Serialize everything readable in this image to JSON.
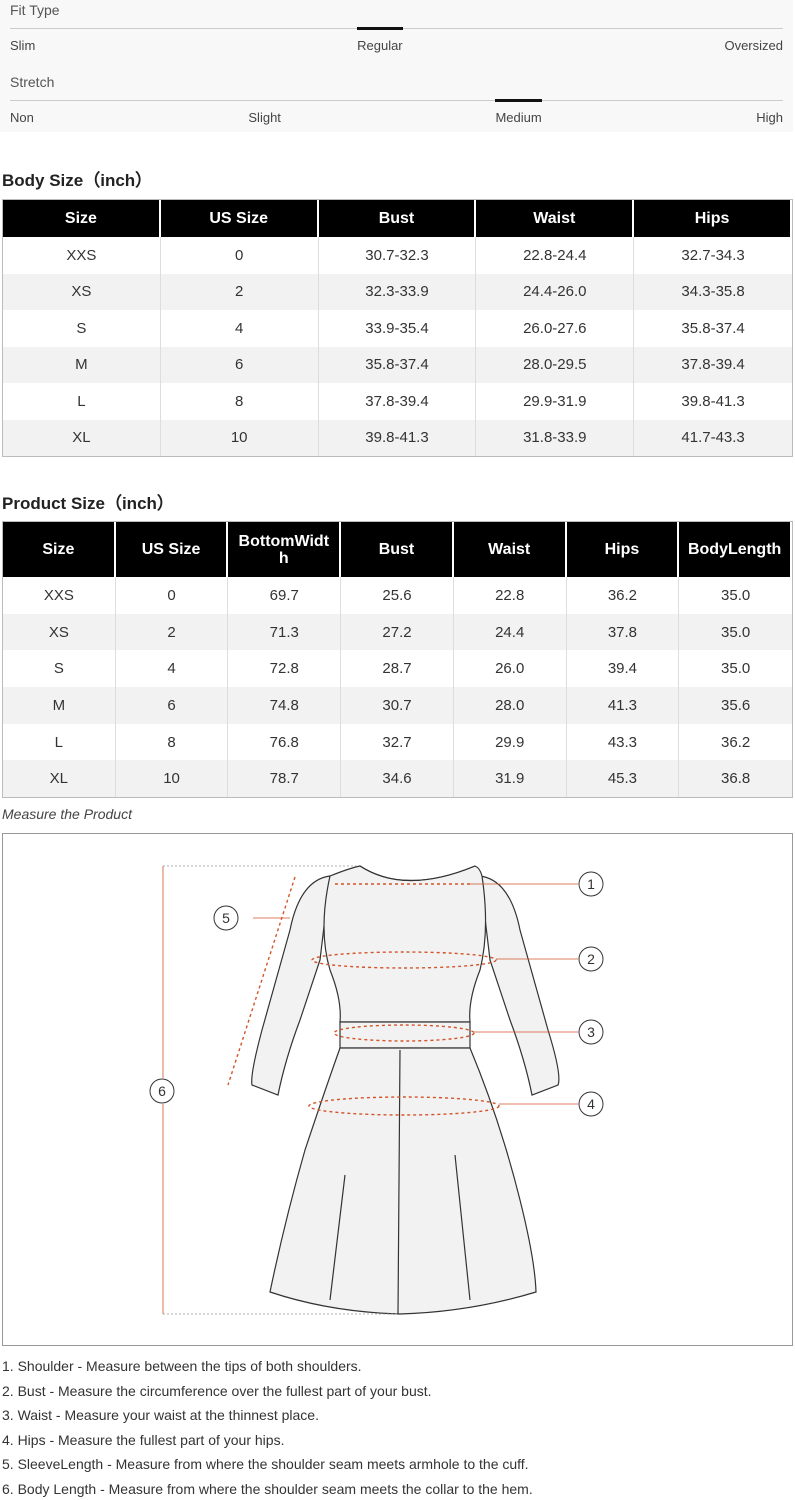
{
  "fit_scales": [
    {
      "title": "Fit Type",
      "options": [
        "Slim",
        "Regular",
        "Oversized"
      ]
    },
    {
      "title": "Stretch",
      "options": [
        "Non",
        "Slight",
        "Medium",
        "High"
      ]
    }
  ],
  "body_size": {
    "title": "Body Size（inch）",
    "header": [
      "Size",
      "US Size",
      "Bust",
      "Waist",
      "Hips"
    ],
    "rows": [
      [
        "XXS",
        "0",
        "30.7-32.3",
        "22.8-24.4",
        "32.7-34.3"
      ],
      [
        "XS",
        "2",
        "32.3-33.9",
        "24.4-26.0",
        "34.3-35.8"
      ],
      [
        "S",
        "4",
        "33.9-35.4",
        "26.0-27.6",
        "35.8-37.4"
      ],
      [
        "M",
        "6",
        "35.8-37.4",
        "28.0-29.5",
        "37.8-39.4"
      ],
      [
        "L",
        "8",
        "37.8-39.4",
        "29.9-31.9",
        "39.8-41.3"
      ],
      [
        "XL",
        "10",
        "39.8-41.3",
        "31.8-33.9",
        "41.7-43.3"
      ]
    ]
  },
  "product_size": {
    "title": "Product Size（inch）",
    "header": [
      "Size",
      "US Size",
      "BottomWidth",
      "Bust",
      "Waist",
      "Hips",
      "BodyLength"
    ],
    "rows": [
      [
        "XXS",
        "0",
        "69.7",
        "25.6",
        "22.8",
        "36.2",
        "35.0"
      ],
      [
        "XS",
        "2",
        "71.3",
        "27.2",
        "24.4",
        "37.8",
        "35.0"
      ],
      [
        "S",
        "4",
        "72.8",
        "28.7",
        "26.0",
        "39.4",
        "35.0"
      ],
      [
        "M",
        "6",
        "74.8",
        "30.7",
        "28.0",
        "41.3",
        "35.6"
      ],
      [
        "L",
        "8",
        "76.8",
        "32.7",
        "29.9",
        "43.3",
        "36.2"
      ],
      [
        "XL",
        "10",
        "78.7",
        "34.6",
        "31.9",
        "45.3",
        "36.8"
      ]
    ]
  },
  "diagram": {
    "caption": "Measure the Product",
    "labels": [
      "1",
      "2",
      "3",
      "4",
      "5",
      "6"
    ]
  },
  "notes": [
    "1. Shoulder - Measure between the tips of both shoulders.",
    "2. Bust - Measure the circumference over the fullest part of your bust.",
    "3. Waist - Measure your waist at the thinnest place.",
    "4. Hips - Measure the fullest part of your hips.",
    "5. SleeveLength - Measure from where the shoulder seam meets armhole to the cuff.",
    "6. Body Length - Measure from where the shoulder seam meets the collar to the hem."
  ]
}
